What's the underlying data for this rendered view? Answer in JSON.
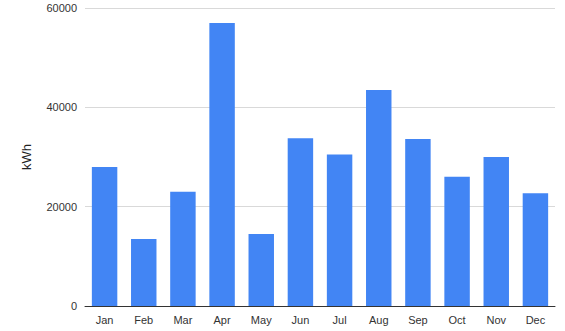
{
  "chart_data": {
    "type": "bar",
    "y_label": "kWh",
    "categories": [
      "Jan",
      "Feb",
      "Mar",
      "Apr",
      "May",
      "Jun",
      "Jul",
      "Aug",
      "Sep",
      "Oct",
      "Nov",
      "Dec"
    ],
    "values": [
      28000,
      13500,
      23000,
      57000,
      14500,
      33800,
      30500,
      43500,
      33600,
      26000,
      30000,
      22700
    ],
    "color": "#4285f4",
    "ylim": [
      0,
      60000
    ],
    "yticks": [
      0,
      20000,
      40000,
      60000
    ],
    "grid": true
  }
}
